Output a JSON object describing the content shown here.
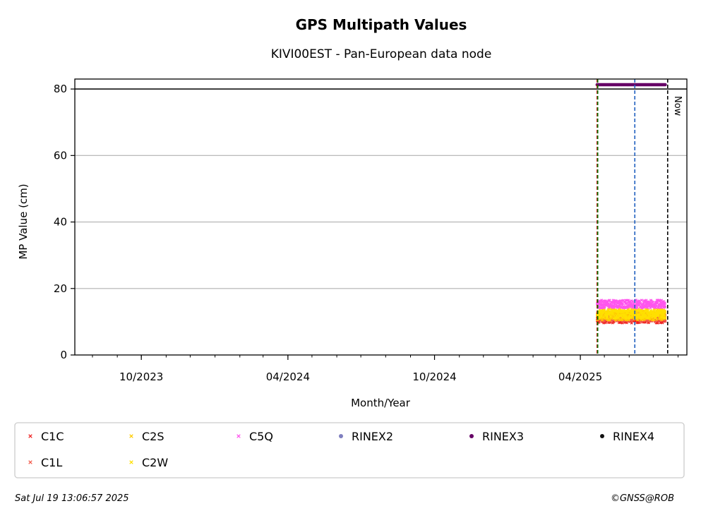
{
  "chart_data": {
    "type": "scatter",
    "title": "GPS Multipath Values",
    "subtitle": "KIVI00EST - Pan-European data node",
    "xlabel": "Month/Year",
    "ylabel": "MP Value (cm)",
    "xlim": [
      "2023-07-10",
      "2025-08-12"
    ],
    "ylim": [
      0,
      83
    ],
    "yticks": [
      0,
      20,
      40,
      60,
      80
    ],
    "xticks": [
      {
        "date": "2023-10-01",
        "label": "10/2023"
      },
      {
        "date": "2024-04-01",
        "label": "04/2024"
      },
      {
        "date": "2024-10-01",
        "label": "10/2024"
      },
      {
        "date": "2025-04-01",
        "label": "04/2025"
      }
    ],
    "grid": "y",
    "threshold_line": 80,
    "vertical_lines": [
      {
        "date": "2025-04-22",
        "color": "#cc0000",
        "style": "dashed"
      },
      {
        "date": "2025-04-22",
        "color": "#007700",
        "style": "dashed"
      },
      {
        "date": "2025-06-08",
        "color": "#1f5fbf",
        "style": "dashed"
      },
      {
        "date": "2025-07-19",
        "color": "#000000",
        "style": "dashed",
        "label": "Now"
      }
    ],
    "series": [
      {
        "name": "C1C",
        "color": "#ee2222",
        "marker": "x",
        "start": "2025-04-22",
        "end": "2025-07-16",
        "mean": 11,
        "spread": 1.4
      },
      {
        "name": "C1L",
        "color": "#f25a4a",
        "marker": "x",
        "start": "2025-04-22",
        "end": "2025-07-16",
        "mean": 11.5,
        "spread": 1.4
      },
      {
        "name": "C2S",
        "color": "#ffcc00",
        "marker": "x",
        "start": "2025-04-22",
        "end": "2025-07-16",
        "mean": 12,
        "spread": 1.5
      },
      {
        "name": "C2W",
        "color": "#ffe000",
        "marker": "x",
        "start": "2025-04-22",
        "end": "2025-07-16",
        "mean": 12.5,
        "spread": 1.5
      },
      {
        "name": "C5Q",
        "color": "#ff55ee",
        "marker": "x",
        "start": "2025-04-22",
        "end": "2025-07-16",
        "mean": 15.3,
        "spread": 1.2
      },
      {
        "name": "RINEX2",
        "color": "#7f7fbf",
        "marker": "dot",
        "start": "",
        "end": "",
        "mean": null,
        "spread": 0
      },
      {
        "name": "RINEX3",
        "color": "#660066",
        "marker": "dot",
        "start": "2025-04-22",
        "end": "2025-07-16",
        "mean": 81.3,
        "spread": 0
      },
      {
        "name": "RINEX4",
        "color": "#111111",
        "marker": "dot",
        "start": "",
        "end": "",
        "mean": null,
        "spread": 0
      }
    ],
    "legend": {
      "placement": "bottom",
      "columns": [
        [
          "C1C",
          "C1L"
        ],
        [
          "C2S",
          "C2W"
        ],
        [
          "C5Q"
        ],
        [
          "RINEX2"
        ],
        [
          "RINEX3"
        ],
        [
          "RINEX4"
        ]
      ]
    }
  },
  "footer": {
    "timestamp": "Sat Jul 19 13:06:57 2025",
    "credit": "©GNSS@ROB"
  }
}
